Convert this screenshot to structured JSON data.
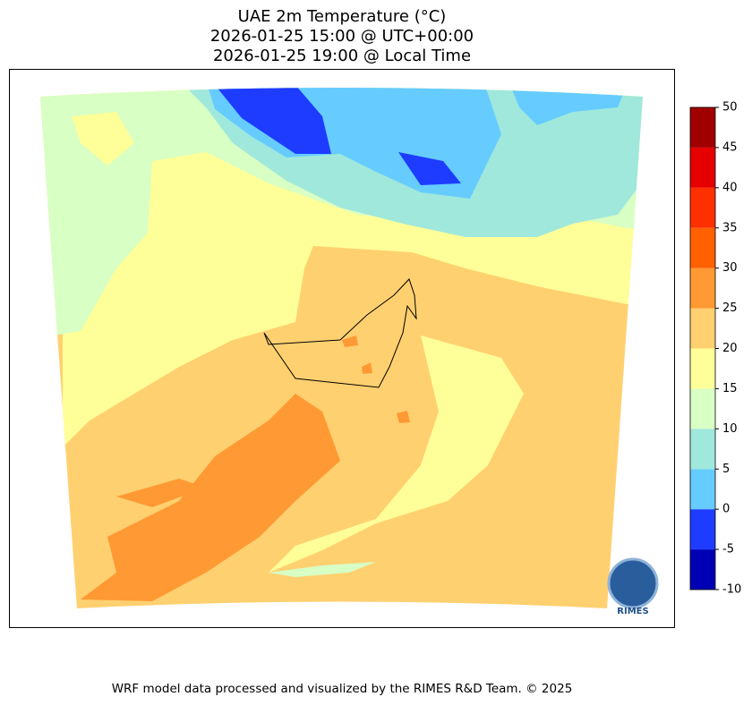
{
  "title_lines": [
    "UAE 2m Temperature (°C)",
    "2026-01-25 15:00 @ UTC+00:00",
    "2026-01-25 19:00 @ Local Time"
  ],
  "colorbar": {
    "levels": [
      -10,
      -5,
      0,
      5,
      10,
      15,
      20,
      25,
      30,
      35,
      40,
      45,
      50
    ],
    "colors": [
      "#0000b4",
      "#1e3cff",
      "#66ccff",
      "#a0e8dc",
      "#d8ffc4",
      "#ffff99",
      "#ffd070",
      "#ff9933",
      "#ff6000",
      "#ff3000",
      "#e60000",
      "#a00000"
    ]
  },
  "logo": "RIMES",
  "footer": "WRF model data processed and visualized by the RIMES R&D Team. © 2025"
}
